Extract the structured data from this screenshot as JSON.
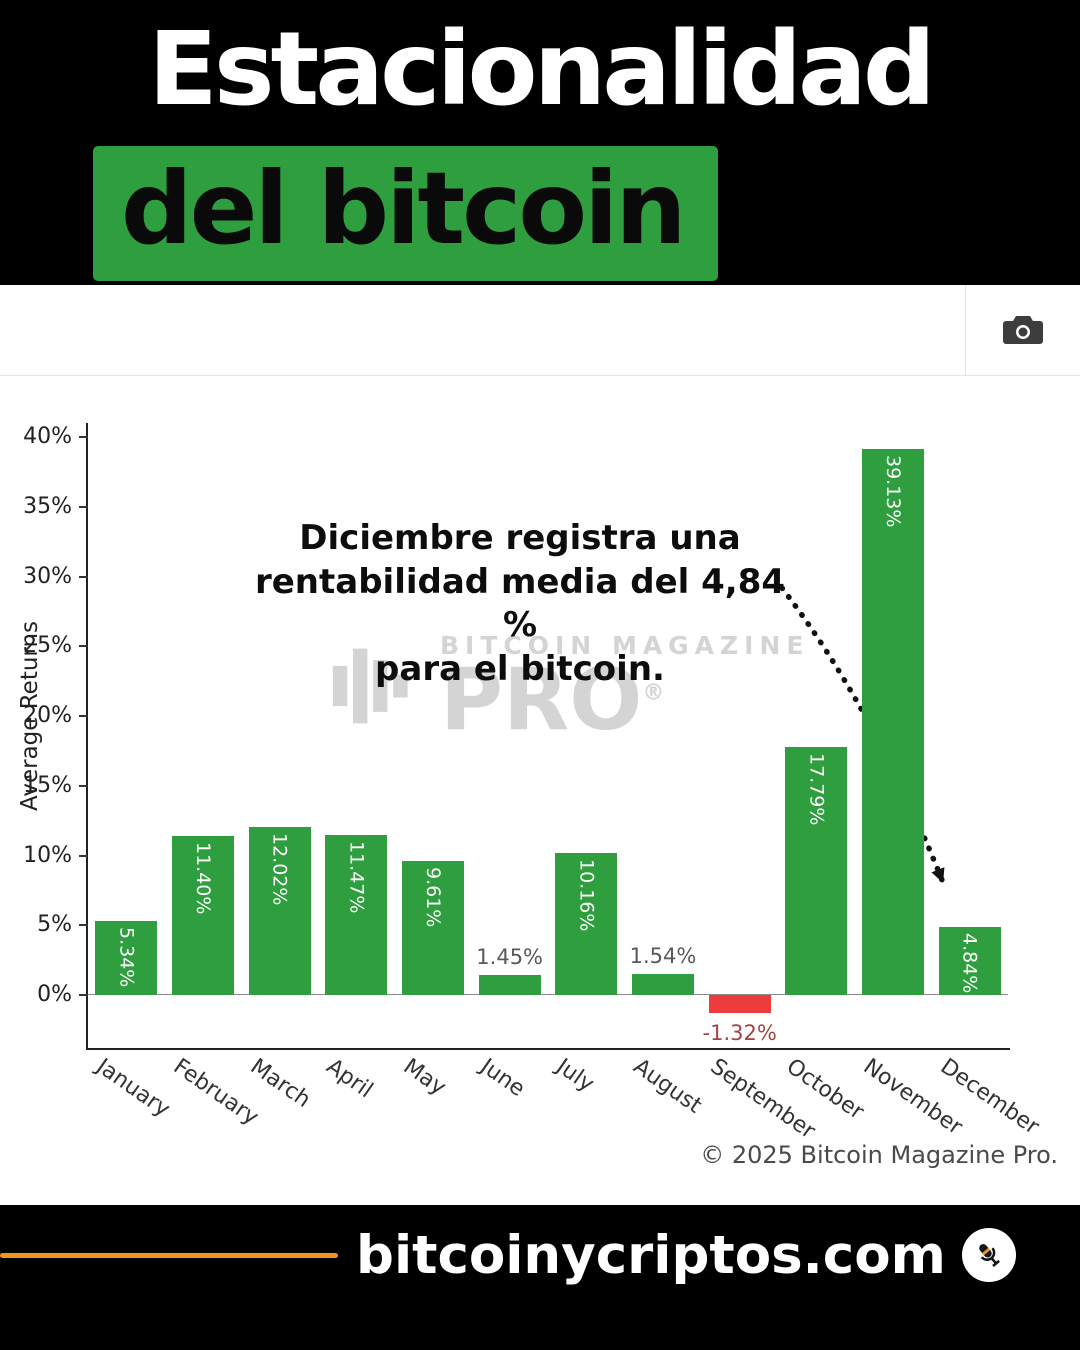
{
  "header": {
    "title_line1": "Estacionalidad",
    "title_line2": "del bitcoin",
    "highlight_color": "#2e9e3e"
  },
  "chart_data": {
    "type": "bar",
    "title": "",
    "xlabel": "",
    "ylabel": "Average Returns",
    "ylim": [
      -5,
      42
    ],
    "grid": false,
    "yticks": [
      0,
      5,
      10,
      15,
      20,
      25,
      30,
      35,
      40
    ],
    "categories": [
      "January",
      "February",
      "March",
      "April",
      "May",
      "June",
      "July",
      "August",
      "September",
      "October",
      "November",
      "December"
    ],
    "values": [
      5.34,
      11.4,
      12.02,
      11.47,
      9.61,
      1.45,
      10.16,
      1.54,
      -1.32,
      17.79,
      39.13,
      4.84
    ],
    "bar_labels": [
      "5.34%",
      "11.40%",
      "12.02%",
      "11.47%",
      "9.61%",
      "1.45%",
      "10.16%",
      "1.54%",
      "-1.32%",
      "17.79%",
      "39.13%",
      "4.84%"
    ],
    "positive_color": "#2e9e3e",
    "negative_color": "#ee3b3b",
    "inside_label_color": "#ffffff",
    "outside_label_color": "#595959",
    "negative_label_color": "#a04343"
  },
  "annotation": {
    "line1": "Diciembre registra una",
    "line2": "rentabilidad media del 4,84 %",
    "line3": "para el bitcoin."
  },
  "watermark": {
    "line1": "BITCOIN MAGAZINE",
    "line2": "PRO",
    "registered": "®"
  },
  "copyright": "© 2025 Bitcoin Magazine Pro.",
  "footer": {
    "site": "bitcoinycriptos.com",
    "accent_color": "#ee9420"
  }
}
